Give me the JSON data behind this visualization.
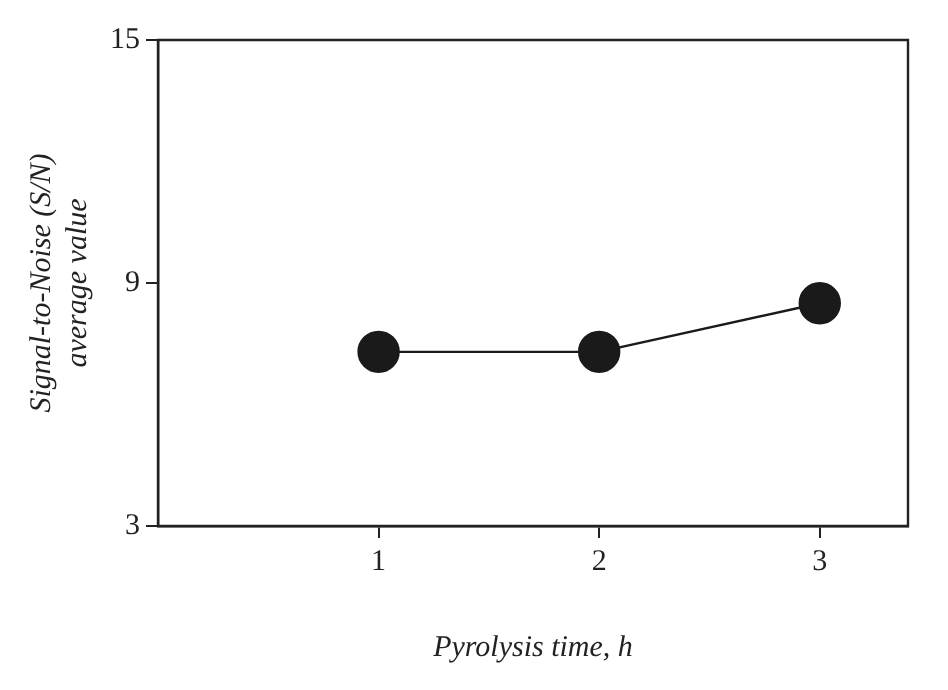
{
  "chart_data": {
    "type": "line",
    "xlabel": "Pyrolysis time, h",
    "ylabel": "Signal-to-Noise (S/N)\naverage value",
    "x": [
      1,
      2,
      3
    ],
    "series": [
      {
        "color": "#1a1a1a",
        "values": [
          7.3,
          7.3,
          8.5
        ]
      }
    ],
    "xlim": [
      0,
      3.4
    ],
    "xticks": [
      1,
      2,
      3
    ],
    "ylim": [
      3,
      15
    ],
    "yticks": [
      3,
      9,
      15
    ],
    "grid": false,
    "legend": false,
    "marker": "circle",
    "line_style": "solid"
  }
}
